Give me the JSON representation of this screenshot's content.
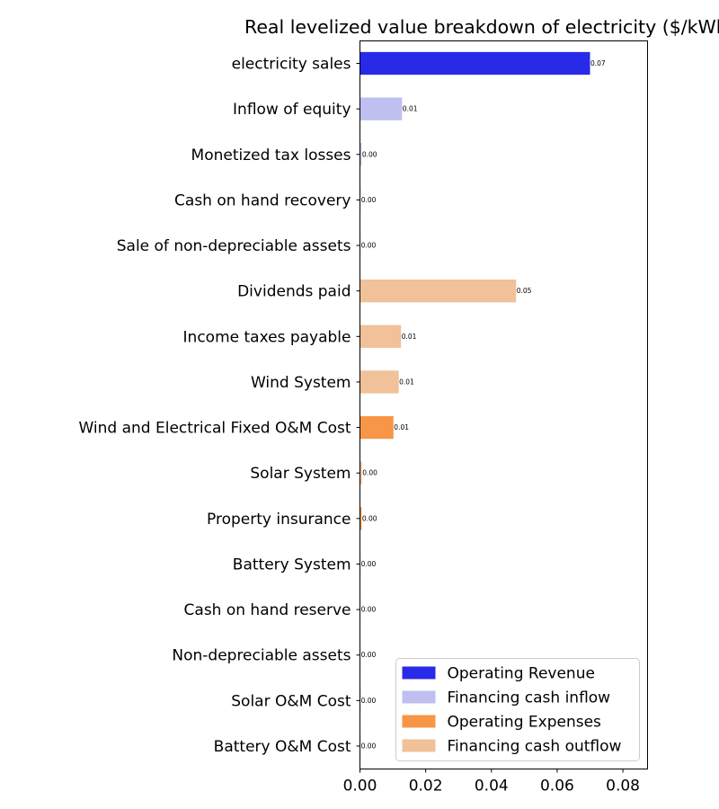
{
  "chart_data": {
    "type": "bar",
    "orientation": "horizontal",
    "title": "Real levelized value breakdown of electricity ($/kWh)",
    "xlim": [
      0,
      0.0875
    ],
    "x_ticks": [
      "0.00",
      "0.02",
      "0.04",
      "0.06",
      "0.08"
    ],
    "x_tick_values": [
      0,
      0.02,
      0.04,
      0.06,
      0.08
    ],
    "grid": false,
    "legend_position": "lower-right",
    "colors": {
      "Operating Revenue": "#2929e8",
      "Financing cash inflow": "#bfbff2",
      "Operating Expenses": "#f79646",
      "Financing cash outflow": "#f1c199"
    },
    "legend": [
      {
        "label": "Operating Revenue",
        "color": "#2929e8"
      },
      {
        "label": "Financing cash inflow",
        "color": "#bfbff2"
      },
      {
        "label": "Operating Expenses",
        "color": "#f79646"
      },
      {
        "label": "Financing cash outflow",
        "color": "#f1c199"
      }
    ],
    "bars": [
      {
        "category": "electricity sales",
        "value": 0.07,
        "label": "0.07",
        "group": "Operating Revenue"
      },
      {
        "category": "Inflow of equity",
        "value": 0.0128,
        "label": "0.01",
        "group": "Financing cash inflow"
      },
      {
        "category": "Monetized tax losses",
        "value": 0.0005,
        "label": "0.00",
        "group": "Financing cash inflow"
      },
      {
        "category": "Cash on hand recovery",
        "value": 0.0002,
        "label": "0.00",
        "group": "Financing cash inflow"
      },
      {
        "category": "Sale of non-depreciable assets",
        "value": 0.0001,
        "label": "0.00",
        "group": "Financing cash inflow"
      },
      {
        "category": "Dividends paid",
        "value": 0.0475,
        "label": "0.05",
        "group": "Financing cash outflow"
      },
      {
        "category": "Income taxes payable",
        "value": 0.0125,
        "label": "0.01",
        "group": "Financing cash outflow"
      },
      {
        "category": "Wind System",
        "value": 0.0118,
        "label": "0.01",
        "group": "Financing cash outflow"
      },
      {
        "category": "Wind and Electrical Fixed O&M Cost",
        "value": 0.0102,
        "label": "0.01",
        "group": "Operating Expenses"
      },
      {
        "category": "Solar System",
        "value": 0.0006,
        "label": "0.00",
        "group": "Financing cash outflow"
      },
      {
        "category": "Property insurance",
        "value": 0.0005,
        "label": "0.00",
        "group": "Operating Expenses"
      },
      {
        "category": "Battery System",
        "value": 0.0001,
        "label": "0.00",
        "group": "Financing cash outflow"
      },
      {
        "category": "Cash on hand reserve",
        "value": 0.0001,
        "label": "0.00",
        "group": "Financing cash outflow"
      },
      {
        "category": "Non-depreciable assets",
        "value": 0.0001,
        "label": "0.00",
        "group": "Financing cash outflow"
      },
      {
        "category": "Solar O&M Cost",
        "value": 0.0001,
        "label": "0.00",
        "group": "Operating Expenses"
      },
      {
        "category": "Battery O&M Cost",
        "value": 0.0001,
        "label": "0.00",
        "group": "Operating Expenses"
      }
    ]
  }
}
